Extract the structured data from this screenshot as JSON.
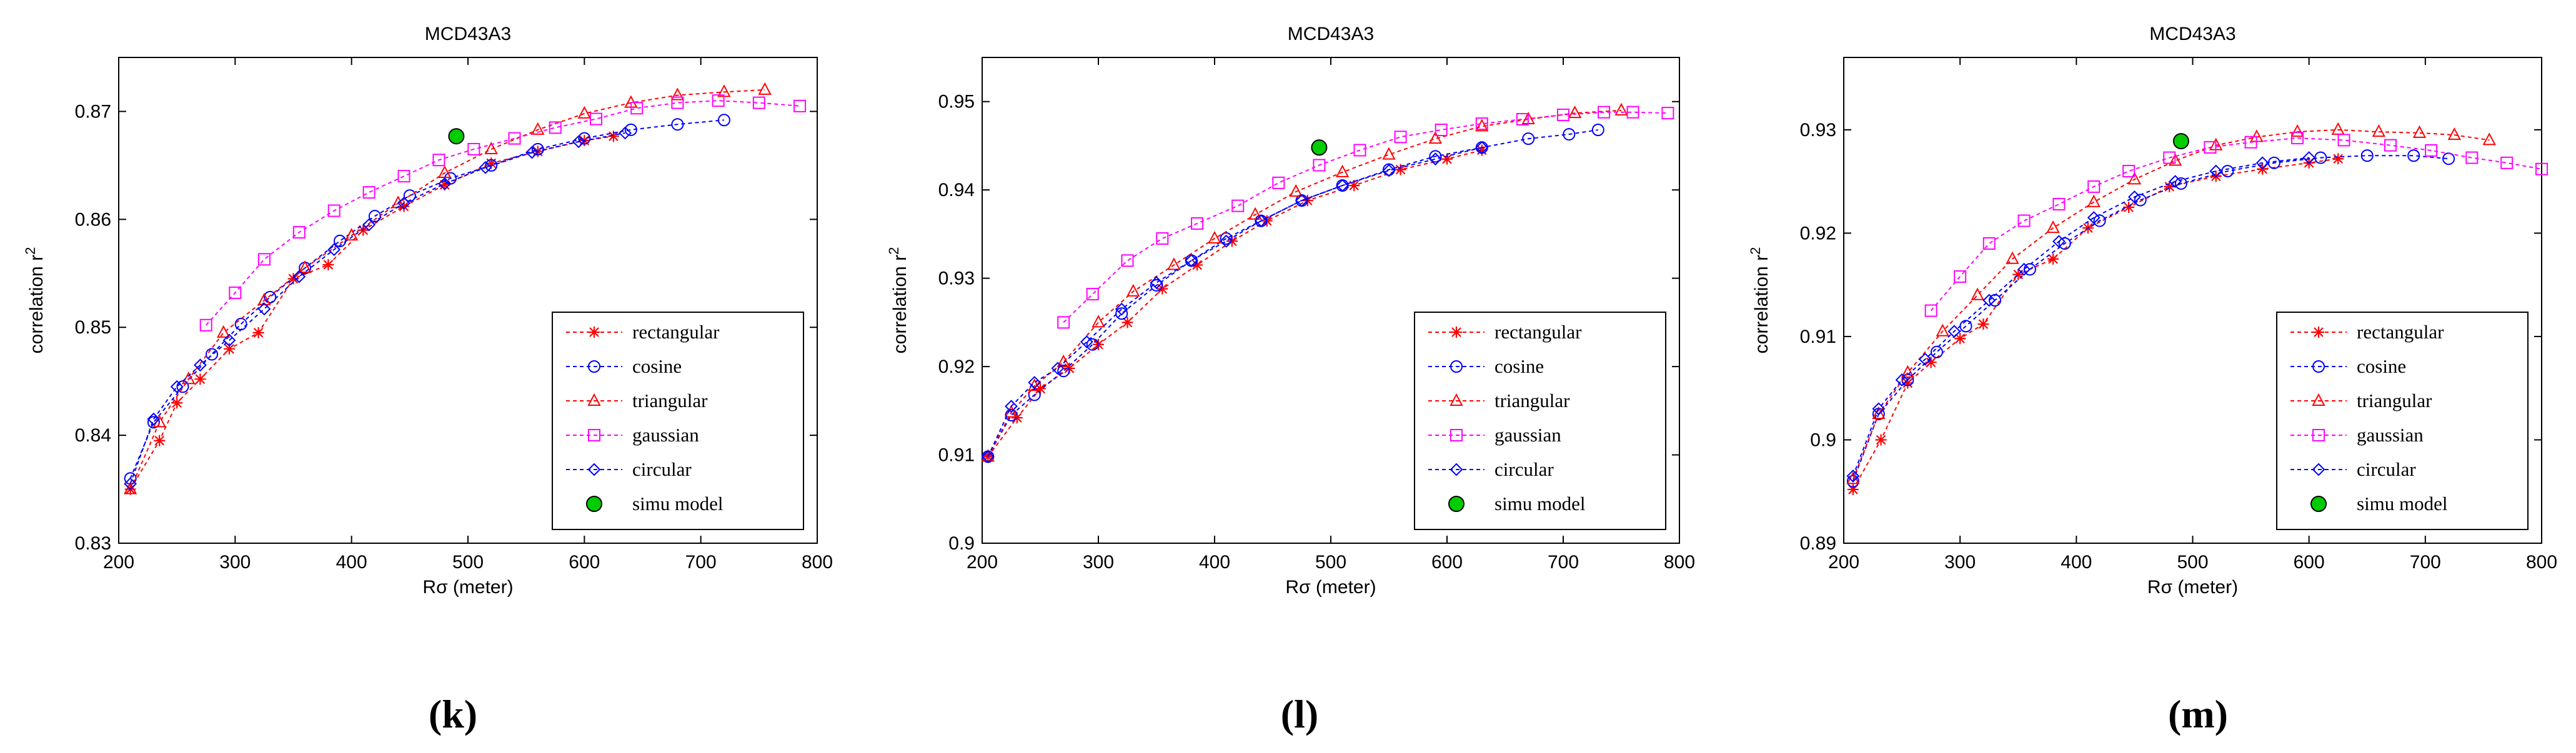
{
  "chart_data": [
    {
      "type": "line",
      "panel_label": "(k)",
      "title": "MCD43A3",
      "xlabel": "Rσ (meter)",
      "ylabel": "correlation r",
      "ylabel_superscript": "2",
      "xlim": [
        200,
        800
      ],
      "ylim": [
        0.83,
        0.875
      ],
      "xticks": [
        200,
        300,
        400,
        500,
        600,
        700,
        800
      ],
      "xtick_labels": [
        "200",
        "300",
        "400",
        "500",
        "600",
        "700",
        "800"
      ],
      "yticks": [
        0.83,
        0.84,
        0.85,
        0.86,
        0.87
      ],
      "ytick_labels": [
        "0.83",
        "0.84",
        "0.85",
        "0.86",
        "0.87"
      ],
      "legend": [
        "rectangular",
        "cosine",
        "triangular",
        "gaussian",
        "circular",
        "simu model"
      ],
      "series": [
        {
          "name": "rectangular",
          "color": "#ff0000",
          "marker": "star",
          "x": [
            210,
            235,
            250,
            270,
            295,
            320,
            350,
            380,
            410,
            445,
            480,
            520,
            560,
            600,
            625
          ],
          "y": [
            0.835,
            0.8395,
            0.843,
            0.8452,
            0.848,
            0.8495,
            0.8545,
            0.8558,
            0.859,
            0.8612,
            0.8632,
            0.8652,
            0.8663,
            0.8673,
            0.8677
          ]
        },
        {
          "name": "cosine",
          "color": "#0000ff",
          "marker": "circle",
          "x": [
            210,
            230,
            255,
            280,
            305,
            330,
            360,
            390,
            420,
            450,
            485,
            520,
            560,
            600,
            640,
            680,
            720
          ],
          "y": [
            0.836,
            0.8412,
            0.8445,
            0.8475,
            0.8503,
            0.8528,
            0.8555,
            0.858,
            0.8603,
            0.8622,
            0.8638,
            0.865,
            0.8665,
            0.8675,
            0.8683,
            0.8688,
            0.8692
          ]
        },
        {
          "name": "triangular",
          "color": "#ff0000",
          "marker": "triangle",
          "x": [
            210,
            235,
            260,
            290,
            325,
            360,
            400,
            440,
            480,
            520,
            560,
            600,
            640,
            680,
            720,
            755
          ],
          "y": [
            0.835,
            0.8412,
            0.8452,
            0.8495,
            0.8525,
            0.8555,
            0.8585,
            0.8615,
            0.8643,
            0.8665,
            0.8683,
            0.8698,
            0.8708,
            0.8715,
            0.8718,
            0.872
          ]
        },
        {
          "name": "gaussian",
          "color": "#ff00ff",
          "marker": "square",
          "x": [
            275,
            300,
            325,
            355,
            385,
            415,
            445,
            475,
            505,
            540,
            575,
            610,
            645,
            680,
            715,
            750,
            785
          ],
          "y": [
            0.8502,
            0.8532,
            0.8563,
            0.8588,
            0.8608,
            0.8625,
            0.864,
            0.8655,
            0.8665,
            0.8675,
            0.8685,
            0.8693,
            0.8703,
            0.8708,
            0.871,
            0.8708,
            0.8705
          ]
        },
        {
          "name": "circular",
          "color": "#0000ff",
          "marker": "diamond",
          "x": [
            210,
            230,
            250,
            270,
            295,
            325,
            355,
            385,
            415,
            445,
            480,
            515,
            555,
            595,
            635
          ],
          "y": [
            0.8355,
            0.8415,
            0.8445,
            0.8465,
            0.8488,
            0.8517,
            0.8547,
            0.8572,
            0.8595,
            0.8615,
            0.8633,
            0.8648,
            0.8662,
            0.8672,
            0.868
          ]
        },
        {
          "name": "simu model",
          "color": "#00cc00",
          "marker": "filled-circle",
          "x": [
            490
          ],
          "y": [
            0.8677
          ]
        }
      ]
    },
    {
      "type": "line",
      "panel_label": "(l)",
      "title": "MCD43A3",
      "xlabel": "Rσ (meter)",
      "ylabel": "correlation r",
      "ylabel_superscript": "2",
      "xlim": [
        200,
        800
      ],
      "ylim": [
        0.9,
        0.955
      ],
      "xticks": [
        200,
        300,
        400,
        500,
        600,
        700,
        800
      ],
      "xtick_labels": [
        "200",
        "300",
        "400",
        "500",
        "600",
        "700",
        "800"
      ],
      "yticks": [
        0.9,
        0.91,
        0.92,
        0.93,
        0.94,
        0.95
      ],
      "ytick_labels": [
        "0.9",
        "0.91",
        "0.92",
        "0.93",
        "0.94",
        "0.95"
      ],
      "legend": [
        "rectangular",
        "cosine",
        "triangular",
        "gaussian",
        "circular",
        "simu model"
      ],
      "series": [
        {
          "name": "rectangular",
          "color": "#ff0000",
          "marker": "star",
          "x": [
            205,
            230,
            250,
            275,
            300,
            325,
            355,
            385,
            415,
            445,
            480,
            520,
            560,
            600,
            630
          ],
          "y": [
            0.9098,
            0.9142,
            0.9175,
            0.9198,
            0.9225,
            0.925,
            0.9288,
            0.9315,
            0.9342,
            0.9365,
            0.9388,
            0.9405,
            0.9423,
            0.9435,
            0.9445
          ]
        },
        {
          "name": "cosine",
          "color": "#0000ff",
          "marker": "circle",
          "x": [
            205,
            225,
            245,
            270,
            295,
            320,
            350,
            380,
            410,
            440,
            475,
            510,
            550,
            590,
            630,
            670,
            705,
            730
          ],
          "y": [
            0.9098,
            0.9145,
            0.9168,
            0.9195,
            0.9225,
            0.926,
            0.9292,
            0.932,
            0.9345,
            0.9365,
            0.9388,
            0.9405,
            0.9423,
            0.9438,
            0.9448,
            0.9458,
            0.9463,
            0.9468
          ]
        },
        {
          "name": "triangular",
          "color": "#ff0000",
          "marker": "triangle",
          "x": [
            205,
            225,
            245,
            270,
            300,
            330,
            365,
            400,
            435,
            470,
            510,
            550,
            590,
            630,
            670,
            710,
            750
          ],
          "y": [
            0.9098,
            0.9148,
            0.9178,
            0.9205,
            0.925,
            0.9285,
            0.9315,
            0.9345,
            0.9372,
            0.9398,
            0.942,
            0.944,
            0.9458,
            0.9472,
            0.948,
            0.9487,
            0.949
          ]
        },
        {
          "name": "gaussian",
          "color": "#ff00ff",
          "marker": "square",
          "x": [
            270,
            295,
            325,
            355,
            385,
            420,
            455,
            490,
            525,
            560,
            595,
            630,
            665,
            700,
            735,
            760,
            790
          ],
          "y": [
            0.925,
            0.9282,
            0.932,
            0.9345,
            0.9362,
            0.9382,
            0.9408,
            0.9428,
            0.9445,
            0.946,
            0.9468,
            0.9475,
            0.948,
            0.9485,
            0.9488,
            0.9488,
            0.9487
          ]
        },
        {
          "name": "circular",
          "color": "#0000ff",
          "marker": "diamond",
          "x": [
            205,
            225,
            245,
            265,
            290,
            320,
            350,
            380,
            410,
            440,
            475,
            510,
            550,
            590,
            630
          ],
          "y": [
            0.9098,
            0.9155,
            0.9182,
            0.9198,
            0.9228,
            0.9265,
            0.9295,
            0.932,
            0.9342,
            0.9365,
            0.9388,
            0.9405,
            0.9422,
            0.9435,
            0.9448
          ]
        },
        {
          "name": "simu model",
          "color": "#00cc00",
          "marker": "filled-circle",
          "x": [
            490
          ],
          "y": [
            0.9448
          ]
        }
      ]
    },
    {
      "type": "line",
      "panel_label": "(m)",
      "title": "MCD43A3",
      "xlabel": "Rσ (meter)",
      "ylabel": "correlation r",
      "ylabel_superscript": "2",
      "xlim": [
        200,
        800
      ],
      "ylim": [
        0.89,
        0.937
      ],
      "xticks": [
        200,
        300,
        400,
        500,
        600,
        700,
        800
      ],
      "xtick_labels": [
        "200",
        "300",
        "400",
        "500",
        "600",
        "700",
        "800"
      ],
      "yticks": [
        0.89,
        0.9,
        0.91,
        0.92,
        0.93
      ],
      "ytick_labels": [
        "0.89",
        "0.9",
        "0.91",
        "0.92",
        "0.93"
      ],
      "legend": [
        "rectangular",
        "cosine",
        "triangular",
        "gaussian",
        "circular",
        "simu model"
      ],
      "series": [
        {
          "name": "rectangular",
          "color": "#ff0000",
          "marker": "star",
          "x": [
            208,
            232,
            255,
            275,
            300,
            320,
            350,
            380,
            410,
            445,
            480,
            520,
            560,
            600,
            625
          ],
          "y": [
            0.8952,
            0.9,
            0.9055,
            0.9075,
            0.9098,
            0.9112,
            0.916,
            0.9175,
            0.9205,
            0.9225,
            0.9245,
            0.9255,
            0.9262,
            0.9268,
            0.9272
          ]
        },
        {
          "name": "cosine",
          "color": "#0000ff",
          "marker": "circle",
          "x": [
            208,
            230,
            255,
            280,
            305,
            330,
            360,
            390,
            420,
            455,
            490,
            530,
            570,
            610,
            650,
            690,
            720
          ],
          "y": [
            0.896,
            0.9025,
            0.9058,
            0.9085,
            0.911,
            0.9135,
            0.9165,
            0.919,
            0.9212,
            0.9232,
            0.9248,
            0.926,
            0.9268,
            0.9273,
            0.9275,
            0.9275,
            0.9272
          ]
        },
        {
          "name": "triangular",
          "color": "#ff0000",
          "marker": "triangle",
          "x": [
            208,
            230,
            255,
            285,
            315,
            345,
            380,
            415,
            450,
            485,
            520,
            555,
            590,
            625,
            660,
            695,
            725,
            755
          ],
          "y": [
            0.8962,
            0.9025,
            0.9065,
            0.9105,
            0.914,
            0.9175,
            0.9205,
            0.923,
            0.9252,
            0.927,
            0.9285,
            0.9293,
            0.9298,
            0.93,
            0.9298,
            0.9297,
            0.9295,
            0.929
          ]
        },
        {
          "name": "gaussian",
          "color": "#ff00ff",
          "marker": "square",
          "x": [
            275,
            300,
            325,
            355,
            385,
            415,
            445,
            480,
            515,
            550,
            590,
            630,
            670,
            705,
            740,
            770,
            800
          ],
          "y": [
            0.9125,
            0.9158,
            0.919,
            0.9212,
            0.9228,
            0.9245,
            0.926,
            0.9273,
            0.9283,
            0.9288,
            0.9292,
            0.929,
            0.9285,
            0.928,
            0.9273,
            0.9268,
            0.9262
          ]
        },
        {
          "name": "circular",
          "color": "#0000ff",
          "marker": "diamond",
          "x": [
            208,
            230,
            250,
            270,
            295,
            325,
            355,
            385,
            415,
            450,
            485,
            520,
            560,
            600
          ],
          "y": [
            0.8965,
            0.903,
            0.9058,
            0.9078,
            0.9105,
            0.9135,
            0.9165,
            0.9192,
            0.9215,
            0.9235,
            0.925,
            0.926,
            0.9268,
            0.9273
          ]
        },
        {
          "name": "simu model",
          "color": "#00cc00",
          "marker": "filled-circle",
          "x": [
            490
          ],
          "y": [
            0.9289
          ]
        }
      ]
    }
  ]
}
